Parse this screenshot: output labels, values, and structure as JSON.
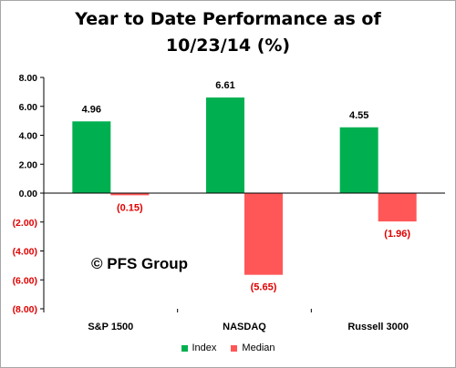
{
  "title_lines": [
    "Year to Date Performance as of",
    "10/23/14 (%)"
  ],
  "watermark": "© PFS Group",
  "colors": {
    "index": "#00b050",
    "median": "#ff5757",
    "negative_text": "#e00000",
    "axis": "#000000",
    "frame": "#a6a6a6"
  },
  "chart_data": {
    "type": "bar",
    "title": "Year to Date Performance as of 10/23/14 (%)",
    "categories": [
      "S&P 1500",
      "NASDAQ",
      "Russell 3000"
    ],
    "series": [
      {
        "name": "Index",
        "values": [
          4.96,
          6.61,
          4.55
        ],
        "labels": [
          "4.96",
          "6.61",
          "4.55"
        ]
      },
      {
        "name": "Median",
        "values": [
          -0.15,
          -5.65,
          -1.96
        ],
        "labels": [
          "(0.15)",
          "(5.65)",
          "(1.96)"
        ]
      }
    ],
    "ylim": [
      -8,
      8
    ],
    "yticks": [
      8,
      6,
      4,
      2,
      0,
      -2,
      -4,
      -6,
      -8
    ],
    "ytick_labels": [
      "8.00",
      "6.00",
      "4.00",
      "2.00",
      "0.00",
      "(2.00)",
      "(4.00)",
      "(6.00)",
      "(8.00)"
    ],
    "legend": {
      "position": "bottom",
      "entries": [
        "Index",
        "Median"
      ]
    },
    "grid": false
  }
}
